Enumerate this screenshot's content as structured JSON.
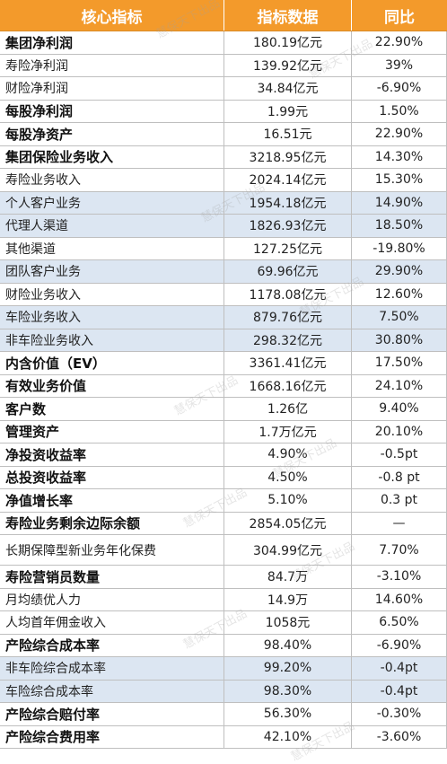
{
  "header": {
    "col1": "核心指标",
    "col2": "指标数据",
    "col3": "同比"
  },
  "watermark": "慧保天下出品",
  "rows": [
    {
      "label": "集团净利润",
      "value": "180.19亿元",
      "yoy": "22.90%",
      "bold": true,
      "indent": 0
    },
    {
      "label": "寿险净利润",
      "value": "139.92亿元",
      "yoy": "39%",
      "bold": false,
      "indent": 4
    },
    {
      "label": "财险净利润",
      "value": "34.84亿元",
      "yoy": "-6.90%",
      "bold": false,
      "indent": 4
    },
    {
      "label": "每股净利润",
      "value": "1.99元",
      "yoy": "1.50%",
      "bold": true,
      "indent": 0
    },
    {
      "label": "每股净资产",
      "value": "16.51元",
      "yoy": "22.90%",
      "bold": true,
      "indent": 0
    },
    {
      "label": "集团保险业务收入",
      "value": "3218.95亿元",
      "yoy": "14.30%",
      "bold": true,
      "indent": 0
    },
    {
      "label": "寿险业务收入",
      "value": "2024.14亿元",
      "yoy": "15.30%",
      "bold": false,
      "indent": 1
    },
    {
      "label": "个人客户业务",
      "value": "1954.18亿元",
      "yoy": "14.90%",
      "bold": false,
      "indent": 2,
      "shade": true
    },
    {
      "label": "代理人渠道",
      "value": "1826.93亿元",
      "yoy": "18.50%",
      "bold": false,
      "indent": 3,
      "shade": true
    },
    {
      "label": "其他渠道",
      "value": "127.25亿元",
      "yoy": "-19.80%",
      "bold": false,
      "indent": 3
    },
    {
      "label": "团队客户业务",
      "value": "69.96亿元",
      "yoy": "29.90%",
      "bold": false,
      "indent": 2,
      "shade": true
    },
    {
      "label": "财险业务收入",
      "value": "1178.08亿元",
      "yoy": "12.60%",
      "bold": false,
      "indent": 1
    },
    {
      "label": "车险业务收入",
      "value": "879.76亿元",
      "yoy": "7.50%",
      "bold": false,
      "indent": 2,
      "shade": true
    },
    {
      "label": "非车险业务收入",
      "value": "298.32亿元",
      "yoy": "30.80%",
      "bold": false,
      "indent": 2,
      "shade": true
    },
    {
      "label": "内含价值（EV）",
      "value": "3361.41亿元",
      "yoy": "17.50%",
      "bold": true,
      "indent": 0
    },
    {
      "label": "有效业务价值",
      "value": "1668.16亿元",
      "yoy": "24.10%",
      "bold": true,
      "indent": 0
    },
    {
      "label": "客户数",
      "value": "1.26亿",
      "yoy": "9.40%",
      "bold": true,
      "indent": 0
    },
    {
      "label": "管理资产",
      "value": "1.7万亿元",
      "yoy": "20.10%",
      "bold": true,
      "indent": 0
    },
    {
      "label": "净投资收益率",
      "value": "4.90%",
      "yoy": "-0.5pt",
      "bold": true,
      "indent": 0
    },
    {
      "label": "总投资收益率",
      "value": "4.50%",
      "yoy": "-0.8 pt",
      "bold": true,
      "indent": 0
    },
    {
      "label": "净值增长率",
      "value": "5.10%",
      "yoy": "0.3 pt",
      "bold": true,
      "indent": 0
    },
    {
      "label": "寿险业务剩余边际余额",
      "value": "2854.05亿元",
      "yoy": "—",
      "bold": true,
      "indent": 0
    },
    {
      "label": "长期保障型新业务年化保费",
      "value": "304.99亿元",
      "yoy": "7.70%",
      "bold": false,
      "indent": 1,
      "tall": true
    },
    {
      "label": "寿险营销员数量",
      "value": "84.7万",
      "yoy": "-3.10%",
      "bold": true,
      "indent": 0
    },
    {
      "label": "月均绩优人力",
      "value": "14.9万",
      "yoy": "14.60%",
      "bold": false,
      "indent": 2
    },
    {
      "label": "人均首年佣金收入",
      "value": "1058元",
      "yoy": "6.50%",
      "bold": false,
      "indent": 2
    },
    {
      "label": "产险综合成本率",
      "value": "98.40%",
      "yoy": "-6.90%",
      "bold": true,
      "indent": 0
    },
    {
      "label": "非车险综合成本率",
      "value": "99.20%",
      "yoy": "-0.4pt",
      "bold": false,
      "indent": 2,
      "shade": true
    },
    {
      "label": "车险综合成本率",
      "value": "98.30%",
      "yoy": "-0.4pt",
      "bold": false,
      "indent": 2,
      "shade": true
    },
    {
      "label": "产险综合赔付率",
      "value": "56.30%",
      "yoy": "-0.30%",
      "bold": true,
      "indent": 0
    },
    {
      "label": "产险综合费用率",
      "value": "42.10%",
      "yoy": "-3.60%",
      "bold": true,
      "indent": 0
    }
  ]
}
